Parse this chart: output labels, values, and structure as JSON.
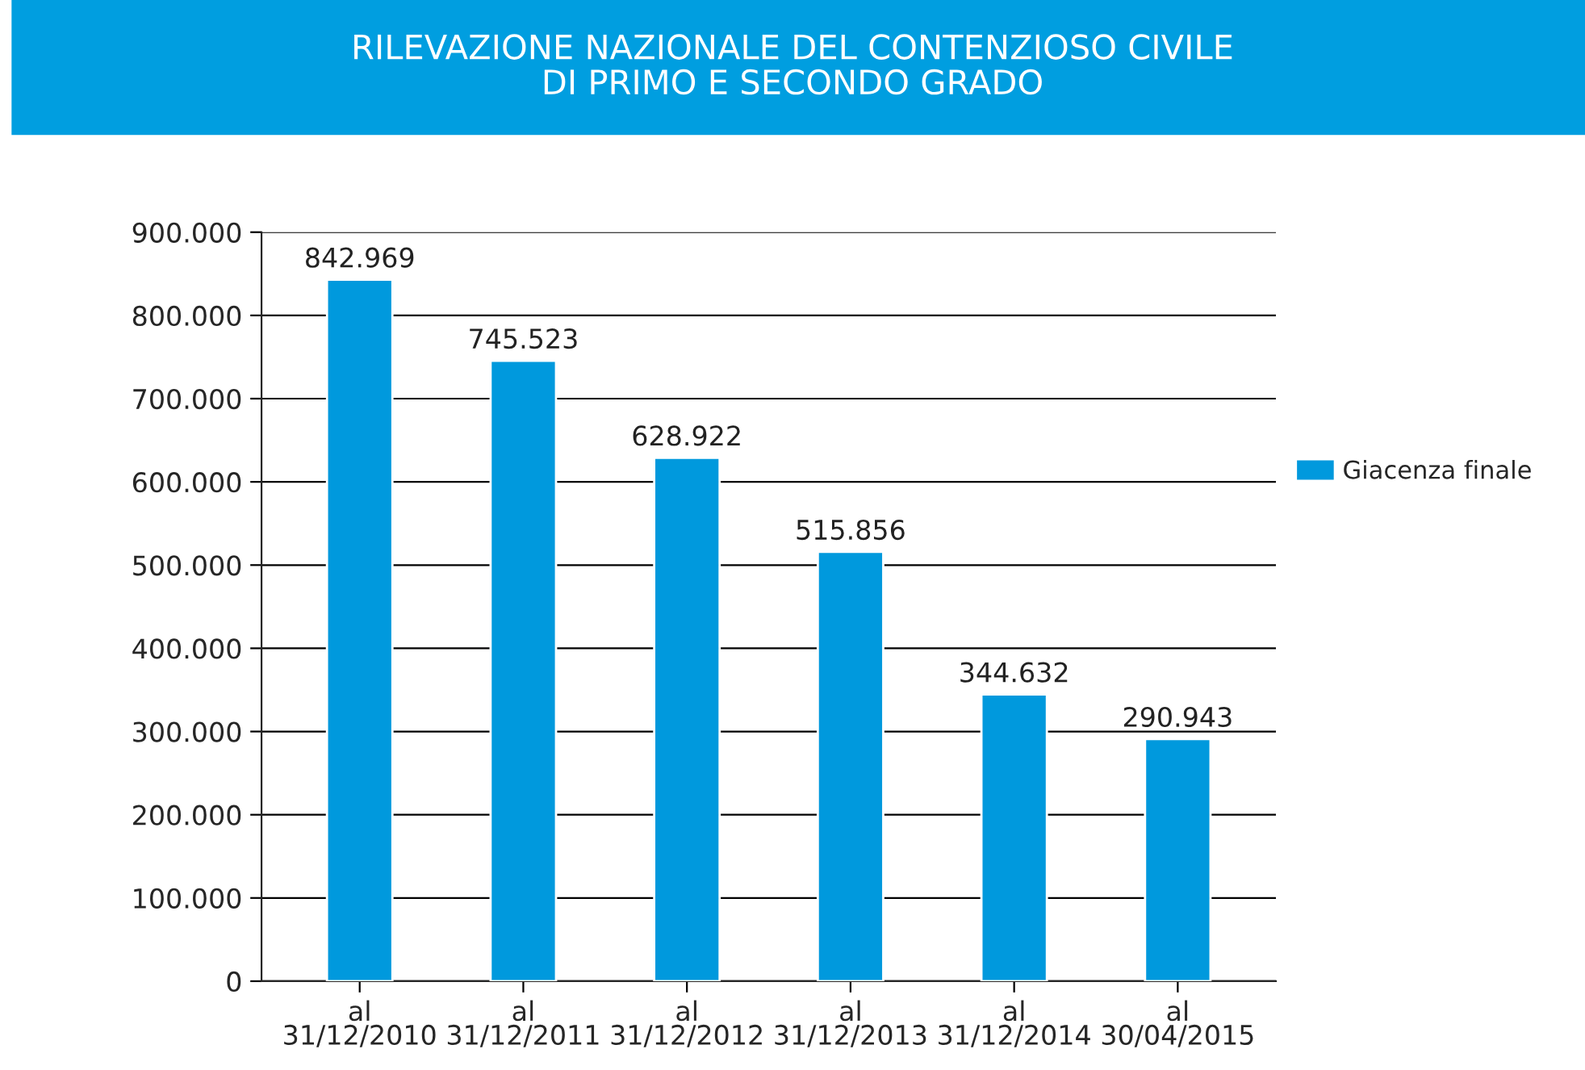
{
  "chart_data": {
    "type": "bar",
    "title": "RILEVAZIONE NAZIONALE DEL CONTENZIOSO CIVILE\nDI PRIMO E SECONDO GRADO",
    "categories": [
      "al\n31/12/2010",
      "al\n31/12/2011",
      "al\n31/12/2012",
      "al\n31/12/2013",
      "al\n31/12/2014",
      "al\n30/04/2015"
    ],
    "series": [
      {
        "name": "Giacenza finale",
        "color": "#0099dd",
        "values": [
          842969,
          745523,
          628922,
          515856,
          344632,
          290943
        ],
        "value_labels": [
          "842.969",
          "745.523",
          "628.922",
          "515.856",
          "344.632",
          "290.943"
        ]
      }
    ],
    "ylim": [
      0,
      900000
    ],
    "yticks": [
      0,
      {
        "value": 100000,
        "label": "100.000"
      },
      {
        "value": 200000,
        "label": "200.000"
      },
      {
        "value": 300000,
        "label": "300.000"
      },
      {
        "value": 400000,
        "label": "400.000"
      },
      {
        "value": 500000,
        "label": "500.000"
      },
      {
        "value": 600000,
        "label": "600.000"
      },
      {
        "value": 700000,
        "label": "700.000"
      },
      {
        "value": 800000,
        "label": "800.000"
      },
      {
        "value": 900000,
        "label": "900.000"
      }
    ],
    "grid": "y",
    "legend": "right"
  }
}
